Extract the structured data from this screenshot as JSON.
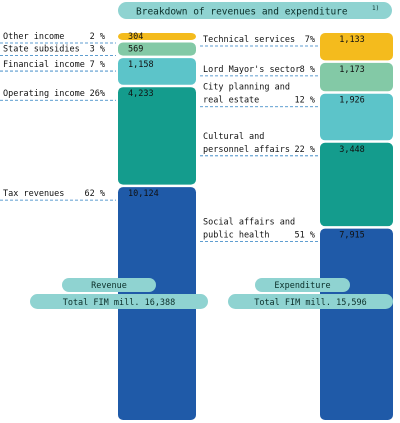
{
  "chart_data": {
    "type": "bar",
    "title": "Breakdown of revenues and expenditure",
    "title_note": "1)",
    "colors": [
      "#f4bb1d",
      "#83c9a6",
      "#5cc4c9",
      "#149c8d",
      "#1f5aa8"
    ],
    "pill_color": "#8fd3d1",
    "dash_color": "#2b7fc1",
    "series": [
      {
        "key": "revenue",
        "pill": "Revenue",
        "total_label": "Total FIM mill. 16,388",
        "total": 16388,
        "items": [
          {
            "label_lines": [
              "Other income"
            ],
            "pct": "2 %",
            "value": 304,
            "display": "304"
          },
          {
            "label_lines": [
              "State subsidies"
            ],
            "pct": "3 %",
            "value": 569,
            "display": "569"
          },
          {
            "label_lines": [
              "Financial income"
            ],
            "pct": "7 %",
            "value": 1158,
            "display": "1,158"
          },
          {
            "label_lines": [
              "Operating income"
            ],
            "pct": "26%",
            "value": 4233,
            "display": "4,233"
          },
          {
            "label_lines": [
              "Tax revenues"
            ],
            "pct": "62 %",
            "value": 10124,
            "display": "10,124"
          }
        ]
      },
      {
        "key": "expenditure",
        "pill": "Expenditure",
        "total_label": "Total FIM mill. 15,596",
        "total": 15596,
        "items": [
          {
            "label_lines": [
              "Technical services"
            ],
            "pct": "7%",
            "value": 1133,
            "display": "1,133"
          },
          {
            "label_lines": [
              "Lord Mayor's sector"
            ],
            "pct": "8 %",
            "value": 1173,
            "display": "1,173"
          },
          {
            "label_lines": [
              "City planning and",
              "real estate"
            ],
            "pct": "12 %",
            "value": 1926,
            "display": "1,926"
          },
          {
            "label_lines": [
              "Cultural and",
              "personnel affairs"
            ],
            "pct": "22 %",
            "value": 3448,
            "display": "3,448"
          },
          {
            "label_lines": [
              "Social affairs and",
              "public health"
            ],
            "pct": "51 %",
            "value": 7915,
            "display": "7,915"
          }
        ]
      }
    ]
  }
}
